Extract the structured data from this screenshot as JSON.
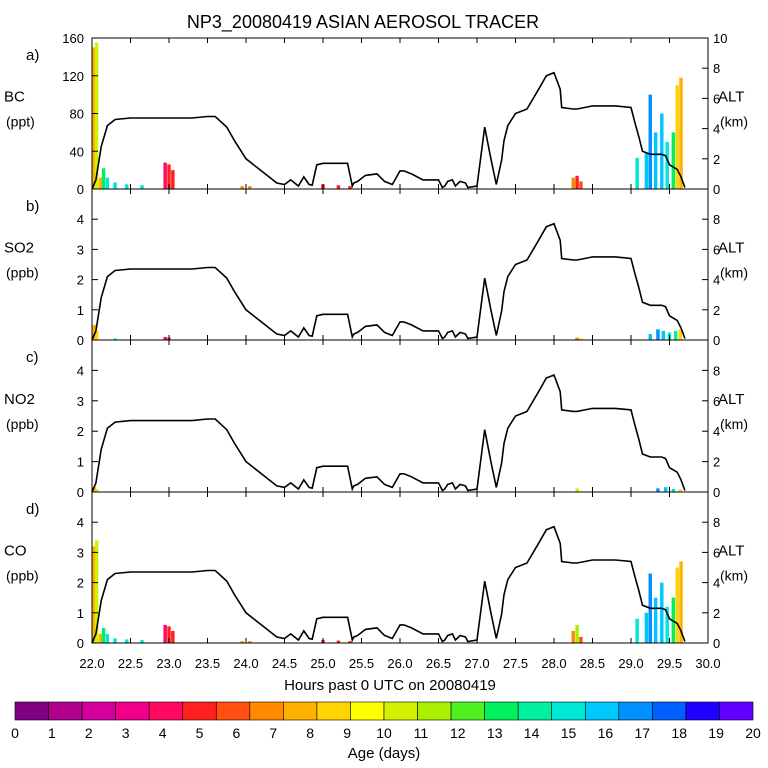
{
  "chart_data": {
    "type": "stacked-bar-with-line",
    "title": "NP3_20080419 ASIAN AEROSOL TRACER",
    "xlabel": "Hours past 0 UTC on 20080419",
    "x_ticks": [
      "22.0",
      "22.5",
      "23.0",
      "23.5",
      "24.0",
      "24.5",
      "25.0",
      "25.5",
      "26.0",
      "26.5",
      "27.0",
      "27.5",
      "28.0",
      "28.5",
      "29.0",
      "29.5",
      "30.0"
    ],
    "xlim": [
      22.0,
      30.0
    ],
    "right_axis": {
      "label": "ALT",
      "unit": "(km)",
      "range": [
        0,
        10
      ]
    },
    "altitude_km": {
      "x": [
        22.0,
        22.05,
        22.12,
        22.2,
        22.3,
        22.5,
        22.8,
        23.0,
        23.3,
        23.5,
        23.6,
        23.75,
        23.85,
        24.0,
        24.2,
        24.4,
        24.5,
        24.58,
        24.68,
        24.75,
        24.82,
        24.86,
        24.92,
        25.0,
        25.1,
        25.2,
        25.32,
        25.38,
        25.4,
        25.45,
        25.55,
        25.7,
        25.8,
        25.9,
        26.0,
        26.05,
        26.15,
        26.3,
        26.5,
        26.55,
        26.58,
        26.62,
        26.68,
        26.72,
        26.78,
        26.85,
        26.88,
        27.0,
        27.1,
        27.18,
        27.25,
        27.32,
        27.35,
        27.4,
        27.5,
        27.6,
        27.65,
        27.8,
        27.9,
        28.0,
        28.08,
        28.1,
        28.25,
        28.3,
        28.4,
        28.5,
        28.6,
        28.8,
        29.0,
        29.05,
        29.1,
        29.15,
        29.25,
        29.3,
        29.4,
        29.45,
        29.5,
        29.6,
        29.65,
        29.7
      ],
      "y": [
        0,
        0.6,
        2.8,
        4.2,
        4.6,
        4.7,
        4.7,
        4.7,
        4.7,
        4.8,
        4.8,
        4.1,
        3.2,
        2.0,
        1.2,
        0.4,
        0.3,
        0.6,
        0.2,
        0.8,
        0.3,
        0.25,
        1.6,
        1.7,
        1.7,
        1.7,
        1.7,
        0.2,
        0.4,
        0.5,
        0.9,
        1.0,
        0.5,
        0.3,
        1.2,
        1.2,
        1.0,
        0.6,
        0.6,
        0.1,
        0.2,
        0.5,
        0.6,
        0.2,
        0.5,
        0.4,
        0.1,
        0.2,
        4.1,
        2.0,
        0.3,
        1.9,
        3.2,
        4.2,
        5.0,
        5.2,
        5.3,
        6.6,
        7.5,
        7.7,
        6.6,
        5.4,
        5.3,
        5.3,
        5.4,
        5.5,
        5.5,
        5.5,
        5.4,
        4.4,
        3.5,
        2.5,
        2.3,
        2.3,
        2.3,
        2.2,
        1.6,
        1.3,
        0.8,
        0.1
      ]
    },
    "panels": [
      {
        "tag": "a)",
        "species": "BC",
        "unit": "(ppt)",
        "ylim": [
          0,
          160
        ],
        "y_ticks": [
          "0",
          "40",
          "80",
          "120",
          "160"
        ],
        "alt_ticks": [
          "0",
          "2",
          "4",
          "6",
          "8",
          "10"
        ],
        "spikes": [
          {
            "x": 22.03,
            "total": 150,
            "age": 8
          },
          {
            "x": 22.06,
            "total": 155,
            "age": 11
          },
          {
            "x": 22.11,
            "total": 12,
            "age": 8
          },
          {
            "x": 22.15,
            "total": 22,
            "age": 14
          },
          {
            "x": 22.2,
            "total": 12,
            "age": 16
          },
          {
            "x": 22.3,
            "total": 7,
            "age": 16
          },
          {
            "x": 22.45,
            "total": 5,
            "age": 16
          },
          {
            "x": 22.65,
            "total": 4,
            "age": 16
          },
          {
            "x": 22.95,
            "total": 28,
            "age": 4
          },
          {
            "x": 23.0,
            "total": 26,
            "age": 5
          },
          {
            "x": 23.05,
            "total": 20,
            "age": 5
          },
          {
            "x": 23.95,
            "total": 3,
            "age": 7
          },
          {
            "x": 24.05,
            "total": 3,
            "age": 7
          },
          {
            "x": 25.0,
            "total": 5,
            "age": 5
          },
          {
            "x": 25.2,
            "total": 4,
            "age": 5
          },
          {
            "x": 25.35,
            "total": 3,
            "age": 5
          },
          {
            "x": 28.25,
            "total": 12,
            "age": 7
          },
          {
            "x": 28.3,
            "total": 14,
            "age": 5
          },
          {
            "x": 28.35,
            "total": 8,
            "age": 6
          },
          {
            "x": 29.08,
            "total": 33,
            "age": 16
          },
          {
            "x": 29.2,
            "total": 38,
            "age": 17
          },
          {
            "x": 29.25,
            "total": 100,
            "age": 18
          },
          {
            "x": 29.32,
            "total": 60,
            "age": 17
          },
          {
            "x": 29.4,
            "total": 80,
            "age": 17
          },
          {
            "x": 29.47,
            "total": 50,
            "age": 16
          },
          {
            "x": 29.55,
            "total": 60,
            "age": 14
          },
          {
            "x": 29.6,
            "total": 110,
            "age": 9
          },
          {
            "x": 29.65,
            "total": 118,
            "age": 8
          }
        ]
      },
      {
        "tag": "b)",
        "species": "SO2",
        "unit": "(ppb)",
        "ylim": [
          0,
          5
        ],
        "y_ticks": [
          "0",
          "1",
          "2",
          "3",
          "4"
        ],
        "alt_ticks": [
          "0",
          "2",
          "4",
          "6",
          "8"
        ],
        "spikes": [
          {
            "x": 22.03,
            "total": 0.5,
            "age": 8
          },
          {
            "x": 22.06,
            "total": 0.3,
            "age": 9
          },
          {
            "x": 22.3,
            "total": 0.05,
            "age": 16
          },
          {
            "x": 22.95,
            "total": 0.1,
            "age": 4
          },
          {
            "x": 23.0,
            "total": 0.08,
            "age": 5
          },
          {
            "x": 28.3,
            "total": 0.08,
            "age": 7
          },
          {
            "x": 28.35,
            "total": 0.05,
            "age": 9
          },
          {
            "x": 29.25,
            "total": 0.2,
            "age": 17
          },
          {
            "x": 29.35,
            "total": 0.35,
            "age": 18
          },
          {
            "x": 29.42,
            "total": 0.3,
            "age": 17
          },
          {
            "x": 29.5,
            "total": 0.25,
            "age": 16
          },
          {
            "x": 29.58,
            "total": 0.3,
            "age": 15
          },
          {
            "x": 29.64,
            "total": 0.35,
            "age": 9
          }
        ]
      },
      {
        "tag": "c)",
        "species": "NO2",
        "unit": "(ppb)",
        "ylim": [
          0,
          5
        ],
        "y_ticks": [
          "0",
          "1",
          "2",
          "3",
          "4"
        ],
        "alt_ticks": [
          "0",
          "2",
          "4",
          "6",
          "8"
        ],
        "spikes": [
          {
            "x": 22.03,
            "total": 0.15,
            "age": 8
          },
          {
            "x": 22.06,
            "total": 0.1,
            "age": 9
          },
          {
            "x": 28.3,
            "total": 0.12,
            "age": 11
          },
          {
            "x": 29.35,
            "total": 0.12,
            "age": 18
          },
          {
            "x": 29.45,
            "total": 0.16,
            "age": 17
          },
          {
            "x": 29.55,
            "total": 0.1,
            "age": 16
          },
          {
            "x": 29.64,
            "total": 0.08,
            "age": 9
          }
        ]
      },
      {
        "tag": "d)",
        "species": "CO",
        "unit": "(ppb)",
        "ylim": [
          0,
          5
        ],
        "y_ticks": [
          "0",
          "1",
          "2",
          "3",
          "4"
        ],
        "alt_ticks": [
          "0",
          "2",
          "4",
          "6",
          "8"
        ],
        "spikes": [
          {
            "x": 22.03,
            "total": 3.2,
            "age": 8
          },
          {
            "x": 22.06,
            "total": 3.4,
            "age": 11
          },
          {
            "x": 22.11,
            "total": 0.3,
            "age": 8
          },
          {
            "x": 22.15,
            "total": 0.5,
            "age": 14
          },
          {
            "x": 22.2,
            "total": 0.3,
            "age": 16
          },
          {
            "x": 22.3,
            "total": 0.15,
            "age": 16
          },
          {
            "x": 22.45,
            "total": 0.12,
            "age": 16
          },
          {
            "x": 22.65,
            "total": 0.1,
            "age": 16
          },
          {
            "x": 22.95,
            "total": 0.6,
            "age": 4
          },
          {
            "x": 23.0,
            "total": 0.55,
            "age": 5
          },
          {
            "x": 23.05,
            "total": 0.4,
            "age": 5
          },
          {
            "x": 23.95,
            "total": 0.06,
            "age": 7
          },
          {
            "x": 24.05,
            "total": 0.06,
            "age": 7
          },
          {
            "x": 25.0,
            "total": 0.1,
            "age": 5
          },
          {
            "x": 25.2,
            "total": 0.08,
            "age": 5
          },
          {
            "x": 25.35,
            "total": 0.06,
            "age": 5
          },
          {
            "x": 28.25,
            "total": 0.4,
            "age": 7
          },
          {
            "x": 28.3,
            "total": 0.6,
            "age": 12
          },
          {
            "x": 28.35,
            "total": 0.2,
            "age": 6
          },
          {
            "x": 29.08,
            "total": 0.8,
            "age": 16
          },
          {
            "x": 29.2,
            "total": 1.0,
            "age": 17
          },
          {
            "x": 29.25,
            "total": 2.3,
            "age": 18
          },
          {
            "x": 29.32,
            "total": 1.5,
            "age": 17
          },
          {
            "x": 29.4,
            "total": 2.0,
            "age": 17
          },
          {
            "x": 29.47,
            "total": 1.2,
            "age": 16
          },
          {
            "x": 29.55,
            "total": 1.5,
            "age": 14
          },
          {
            "x": 29.6,
            "total": 2.5,
            "age": 9
          },
          {
            "x": 29.65,
            "total": 2.7,
            "age": 8
          }
        ]
      }
    ],
    "colorbar": {
      "label": "Age (days)",
      "tick_labels": [
        "0",
        "1",
        "2",
        "3",
        "4",
        "5",
        "6",
        "7",
        "8",
        "9",
        "10",
        "11",
        "12",
        "13",
        "14",
        "15",
        "16",
        "17",
        "18",
        "19",
        "20"
      ],
      "colors": [
        "#800080",
        "#b0008c",
        "#d4009c",
        "#f0008a",
        "#ff0a60",
        "#ff2020",
        "#ff5010",
        "#ff8a00",
        "#ffb000",
        "#ffd400",
        "#ffff00",
        "#d4f000",
        "#a8f000",
        "#50f020",
        "#00f060",
        "#00f0a0",
        "#00e8d8",
        "#00c8ff",
        "#0090ff",
        "#0060ff",
        "#2000ff",
        "#6000ff"
      ]
    }
  }
}
